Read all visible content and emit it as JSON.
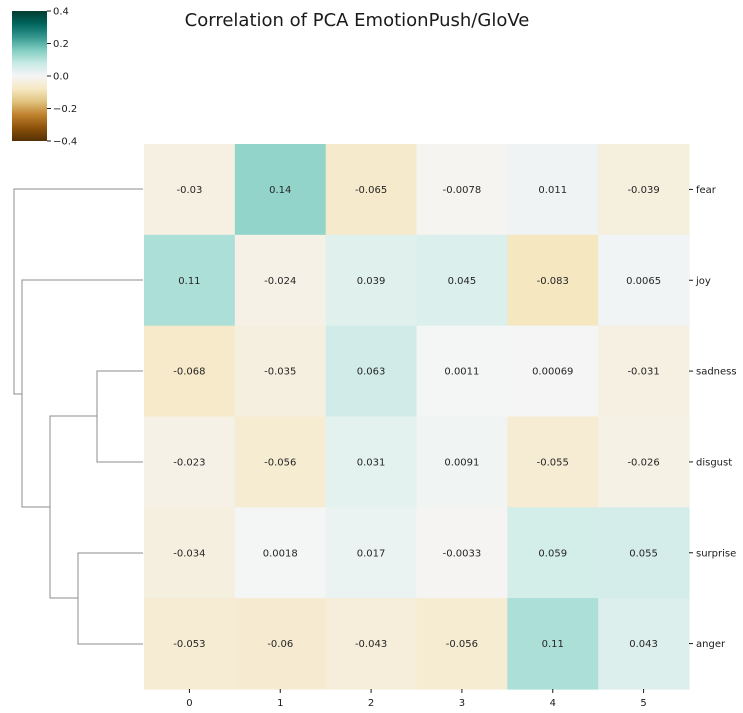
{
  "chart_data": {
    "type": "heatmap",
    "title": "Correlation of PCA EmotionPush/GloVe",
    "rows": [
      "fear",
      "joy",
      "sadness",
      "disgust",
      "surprise",
      "anger"
    ],
    "columns": [
      "0",
      "1",
      "2",
      "3",
      "4",
      "5"
    ],
    "values": [
      [
        -0.03,
        0.14,
        -0.065,
        -0.0078,
        0.011,
        -0.039
      ],
      [
        0.11,
        -0.024,
        0.039,
        0.045,
        -0.083,
        0.0065
      ],
      [
        -0.068,
        -0.035,
        0.063,
        0.0011,
        0.00069,
        -0.031
      ],
      [
        -0.023,
        -0.056,
        0.031,
        0.0091,
        -0.055,
        -0.026
      ],
      [
        -0.034,
        0.0018,
        0.017,
        -0.0033,
        0.059,
        0.055
      ],
      [
        -0.053,
        -0.06,
        -0.043,
        -0.056,
        0.11,
        0.043
      ]
    ],
    "value_labels": [
      [
        "-0.03",
        "0.14",
        "-0.065",
        "-0.0078",
        "0.011",
        "-0.039"
      ],
      [
        "0.11",
        "-0.024",
        "0.039",
        "0.045",
        "-0.083",
        "0.0065"
      ],
      [
        "-0.068",
        "-0.035",
        "0.063",
        "0.0011",
        "0.00069",
        "-0.031"
      ],
      [
        "-0.023",
        "-0.056",
        "0.031",
        "0.0091",
        "-0.055",
        "-0.026"
      ],
      [
        "-0.034",
        "0.0018",
        "0.017",
        "-0.0033",
        "0.059",
        "0.055"
      ],
      [
        "-0.053",
        "-0.06",
        "-0.043",
        "-0.056",
        "0.11",
        "0.043"
      ]
    ],
    "colormap": "BrBG",
    "vmin": -0.4,
    "vmax": 0.4,
    "colorbar_ticks": [
      "0.4",
      "0.2",
      "0.0",
      "−0.2",
      "−0.4"
    ],
    "colorbar_tick_values": [
      0.4,
      0.2,
      0.0,
      -0.2,
      -0.4
    ],
    "dendrogram": "row clustering on left",
    "row_label_position": "right",
    "colorbar_position": "top-left"
  }
}
